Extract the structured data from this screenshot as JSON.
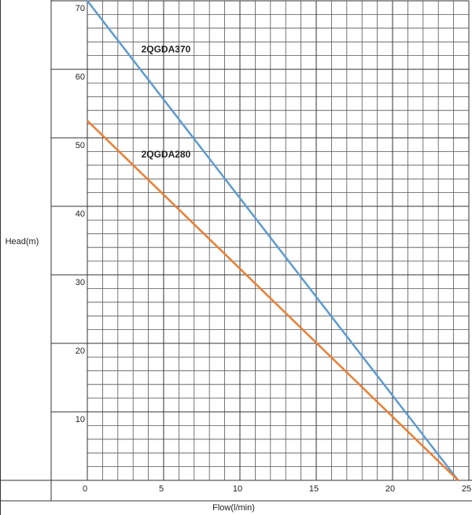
{
  "chart_data": {
    "type": "line",
    "x_label": "Flow(l/min)",
    "y_label": "Head(m)",
    "x": [
      0,
      24.3
    ],
    "series": [
      {
        "name": "2QGDA370",
        "color": "#5b9bd5",
        "values": [
          70,
          0
        ]
      },
      {
        "name": "2QGDA280",
        "color": "#ed7d31",
        "values": [
          52.5,
          0
        ]
      }
    ],
    "xlim": [
      0,
      25
    ],
    "ylim": [
      0,
      70
    ],
    "xticks": [
      0,
      5,
      10,
      15,
      20,
      25
    ],
    "yticks": [
      10,
      20,
      30,
      40,
      50,
      60,
      70
    ],
    "grid": true,
    "grid_step_x": 1,
    "grid_step_y": 2
  }
}
